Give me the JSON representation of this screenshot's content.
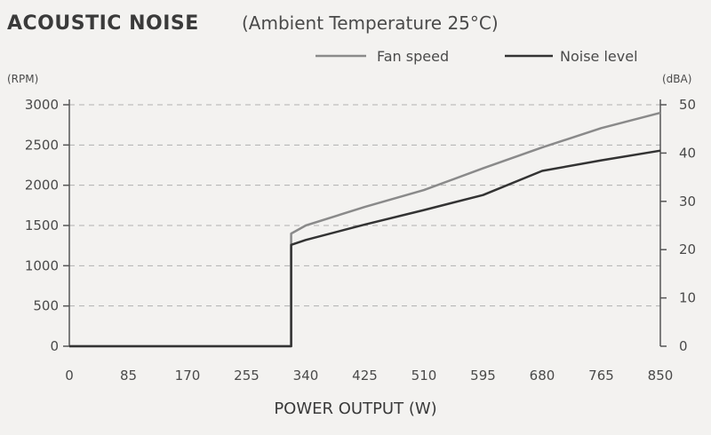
{
  "chart_data": {
    "type": "line",
    "title": "ACOUSTIC NOISE",
    "subtitle": "(Ambient Temperature 25°C)",
    "xlabel": "POWER OUTPUT (W)",
    "ylabel_left": "(RPM)",
    "ylabel_right": "(dBA)",
    "x_ticks": [
      "0",
      "85",
      "170",
      "255",
      "340",
      "425",
      "510",
      "595",
      "680",
      "765",
      "850"
    ],
    "y_left_ticks": [
      "0",
      "500",
      "1000",
      "1500",
      "2000",
      "2500",
      "3000"
    ],
    "y_right_ticks": [
      "0",
      "10",
      "20",
      "30",
      "40",
      "50"
    ],
    "xlim": [
      0,
      850
    ],
    "ylim_left": [
      0,
      3000
    ],
    "ylim_right": [
      0,
      50
    ],
    "grid": true,
    "legend_position": "top-right",
    "series": [
      {
        "name": "Fan speed",
        "axis": "left",
        "color": "#8a8a8a",
        "x": [
          0,
          85,
          170,
          255,
          319,
          319,
          340,
          425,
          510,
          595,
          680,
          765,
          850
        ],
        "y": [
          0,
          0,
          0,
          0,
          0,
          1400,
          1500,
          1730,
          1940,
          2210,
          2470,
          2710,
          2900
        ]
      },
      {
        "name": "Noise level",
        "axis": "right",
        "color": "#333333",
        "x": [
          0,
          85,
          170,
          255,
          319,
          319,
          340,
          425,
          510,
          595,
          680,
          765,
          850
        ],
        "y": [
          0,
          0,
          0,
          0,
          0,
          21,
          22,
          25.2,
          28.2,
          31.3,
          36.3,
          38.5,
          40.5
        ]
      }
    ]
  }
}
